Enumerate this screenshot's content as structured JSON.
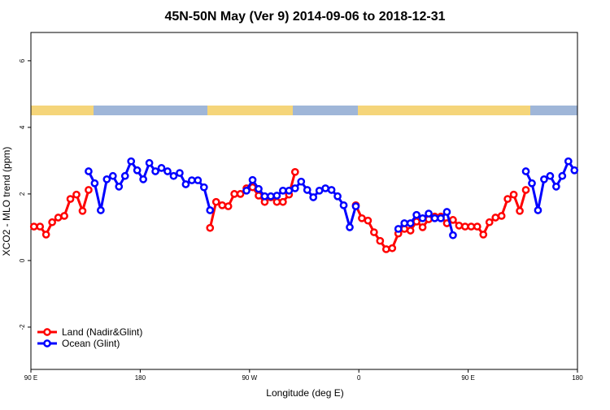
{
  "chart_data": {
    "type": "line",
    "title": "45N-50N May (Ver 9)   2014-09-06 to 2018-12-31",
    "x_label": "Longitude (deg E)",
    "y_label": "XCO2 - MLO trend (ppm)",
    "xlim": [
      90,
      540
    ],
    "ylim": [
      -3.27,
      6.85
    ],
    "xticks": [
      {
        "value": 90,
        "label": "90 E"
      },
      180,
      {
        "value": 270,
        "label": "90 W"
      },
      {
        "value": 360,
        "label": "0"
      },
      {
        "value": 450,
        "label": "90 E"
      },
      {
        "value": 540,
        "label": "180"
      }
    ],
    "yticks": [
      -2,
      0,
      2,
      4,
      6
    ],
    "legend": "bottom-left",
    "x": [
      92.5,
      97.5,
      102.5,
      107.5,
      112.5,
      117.5,
      122.5,
      127.5,
      132.5,
      137.5,
      142.5,
      147.5,
      152.5,
      157.5,
      162.5,
      167.5,
      172.5,
      177.5,
      182.5,
      187.5,
      192.5,
      197.5,
      202.5,
      207.5,
      212.5,
      217.5,
      222.5,
      227.5,
      232.5,
      237.5,
      242.5,
      247.5,
      252.5,
      257.5,
      262.5,
      267.5,
      272.5,
      277.5,
      282.5,
      287.5,
      292.5,
      297.5,
      302.5,
      307.5,
      312.5,
      317.5,
      322.5,
      327.5,
      332.5,
      337.5,
      342.5,
      347.5,
      352.5,
      357.5,
      362.5,
      367.5,
      372.5,
      377.5,
      382.5,
      387.5,
      392.5,
      397.5,
      402.5,
      407.5,
      412.5,
      417.5,
      422.5,
      427.5,
      432.5,
      437.5,
      442.5,
      447.5,
      452.5,
      457.5,
      462.5,
      467.5,
      472.5,
      477.5,
      482.5,
      487.5,
      492.5,
      497.5,
      502.5,
      507.5,
      512.5,
      517.5,
      522.5,
      527.5,
      532.5,
      537.5
    ],
    "series": [
      {
        "name": "Land (Nadir&Glint)",
        "color": "#ff0000",
        "values": [
          1.02,
          1.02,
          0.78,
          1.15,
          1.29,
          1.34,
          1.85,
          1.98,
          1.49,
          2.12,
          null,
          null,
          null,
          null,
          null,
          null,
          null,
          null,
          null,
          null,
          null,
          null,
          null,
          null,
          null,
          null,
          null,
          null,
          null,
          0.98,
          1.76,
          1.66,
          1.63,
          2.0,
          2.0,
          2.17,
          2.2,
          1.95,
          1.76,
          1.9,
          1.76,
          1.76,
          1.98,
          2.66,
          null,
          null,
          null,
          null,
          null,
          null,
          null,
          null,
          null,
          1.66,
          1.27,
          1.2,
          0.85,
          0.59,
          0.34,
          0.37,
          0.81,
          0.95,
          0.9,
          1.17,
          1.0,
          1.24,
          1.32,
          1.32,
          1.12,
          1.22,
          1.05,
          1.02,
          1.02,
          1.02,
          0.78,
          1.15,
          1.29,
          1.34,
          1.85,
          1.98,
          1.49,
          2.12,
          null,
          null,
          null,
          null,
          null,
          null,
          null,
          null
        ]
      },
      {
        "name": "Ocean (Glint)",
        "color": "#0000ff",
        "values": [
          null,
          null,
          null,
          null,
          null,
          null,
          null,
          null,
          null,
          2.68,
          2.32,
          1.51,
          2.44,
          2.54,
          2.22,
          2.54,
          2.98,
          2.71,
          2.44,
          2.93,
          2.68,
          2.78,
          2.68,
          2.54,
          2.63,
          2.29,
          2.41,
          2.41,
          2.2,
          1.51,
          null,
          null,
          null,
          null,
          null,
          2.1,
          2.42,
          2.15,
          1.93,
          1.93,
          1.95,
          2.1,
          2.1,
          2.17,
          2.37,
          2.12,
          1.9,
          2.1,
          2.17,
          2.12,
          1.93,
          1.66,
          1.0,
          1.63,
          null,
          null,
          null,
          null,
          null,
          null,
          0.95,
          1.12,
          1.12,
          1.37,
          1.27,
          1.41,
          1.27,
          1.27,
          1.46,
          0.76,
          null,
          null,
          null,
          null,
          null,
          null,
          null,
          null,
          null,
          null,
          null,
          2.68,
          2.32,
          1.51,
          2.44,
          2.54,
          2.22,
          2.54,
          2.98,
          2.71
        ]
      }
    ]
  }
}
